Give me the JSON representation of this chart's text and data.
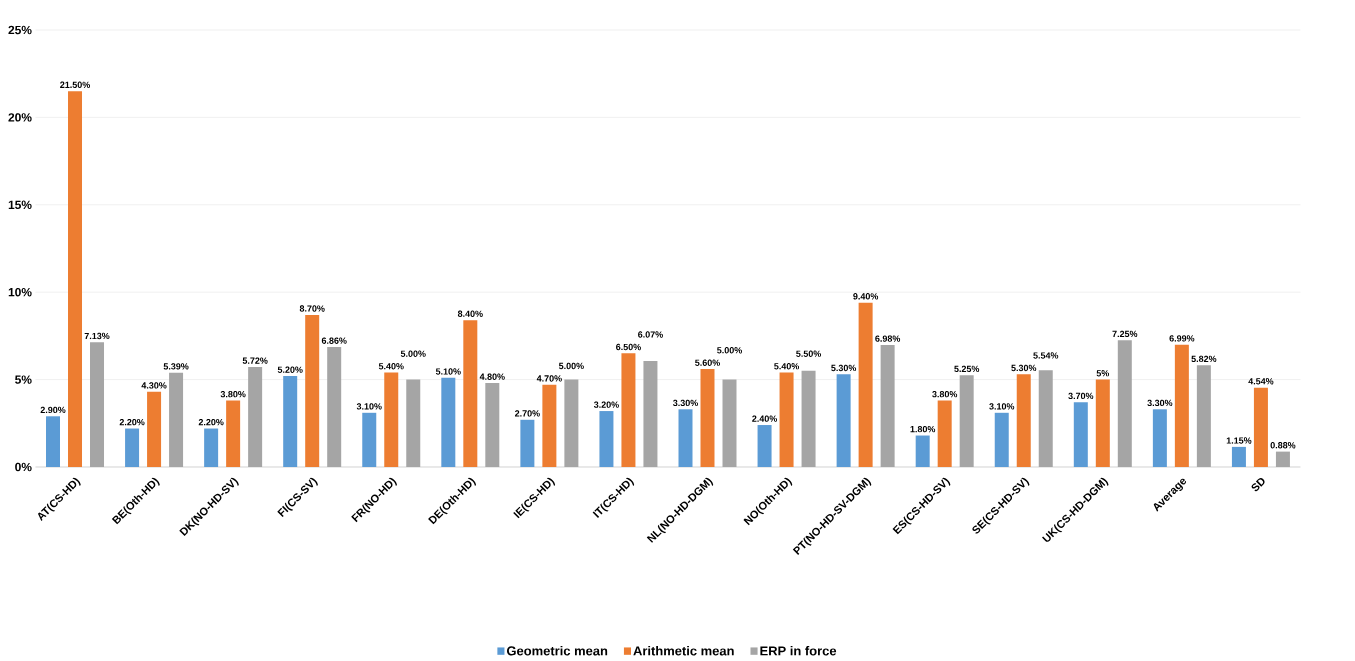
{
  "chart_data": {
    "type": "bar",
    "categories": [
      "AT(CS-HD)",
      "BE(Oth-HD)",
      "DK(NO-HD-SV)",
      "FI(CS-SV)",
      "FR(NO-HD)",
      "DE(Oth-HD)",
      "IE(CS-HD)",
      "IT(CS-HD)",
      "NL(NO-HD-DGM)",
      "NO(Oth-HD)",
      "PT(NO-HD-SV-DGM)",
      "ES(CS-HD-SV)",
      "SE(CS-HD-SV)",
      "UK(CS-HD-DGM)",
      "Average",
      "SD"
    ],
    "series": [
      {
        "name": "Geometric mean",
        "color": "#5b9bd5",
        "values": [
          2.9,
          2.2,
          2.2,
          5.2,
          3.1,
          5.1,
          2.7,
          3.2,
          3.3,
          2.4,
          5.3,
          1.8,
          3.1,
          3.7,
          3.3,
          1.15
        ],
        "value_labels": [
          "2.90%",
          "2.20%",
          "2.20%",
          "5.20%",
          "3.10%",
          "5.10%",
          "2.70%",
          "3.20%",
          "3.30%",
          "2.40%",
          "5.30%",
          "1.80%",
          "3.10%",
          "3.70%",
          "3.30%",
          "1.15%"
        ]
      },
      {
        "name": "Arithmetic mean",
        "color": "#ed7d31",
        "values": [
          21.5,
          4.3,
          3.8,
          8.7,
          5.4,
          8.4,
          4.7,
          6.5,
          5.6,
          5.4,
          9.4,
          3.8,
          5.3,
          5,
          6.99,
          4.54
        ],
        "value_labels": [
          "21.50%",
          "4.30%",
          "3.80%",
          "8.70%",
          "5.40%",
          "8.40%",
          "4.70%",
          "6.50%",
          "5.60%",
          "5.40%",
          "9.40%",
          "3.80%",
          "5.30%",
          "5%",
          "6.99%",
          "4.54%"
        ]
      },
      {
        "name": "ERP in force",
        "color": "#a5a5a5",
        "values": [
          7.13,
          5.39,
          5.72,
          6.86,
          5.0,
          4.8,
          5.0,
          6.07,
          5.0,
          5.5,
          6.98,
          5.25,
          5.54,
          7.25,
          5.82,
          0.88
        ],
        "value_labels": [
          "7.13%",
          "5.39%",
          "5.72%",
          "6.86%",
          "5.00%",
          "4.80%",
          "5.00%",
          "6.07%",
          "5.00%",
          "5.50%",
          "6.98%",
          "5.25%",
          "5.54%",
          "7.25%",
          "5.82%",
          "0.88%"
        ]
      }
    ],
    "ylim": [
      0,
      25
    ],
    "yticks": [
      {
        "value": 0,
        "label": "0%"
      },
      {
        "value": 5,
        "label": "5%"
      },
      {
        "value": 10,
        "label": "10%"
      },
      {
        "value": 15,
        "label": "15%"
      },
      {
        "value": 20,
        "label": "20%"
      },
      {
        "value": 25,
        "label": "25%"
      }
    ],
    "grid": "y",
    "legend": "bottom"
  }
}
